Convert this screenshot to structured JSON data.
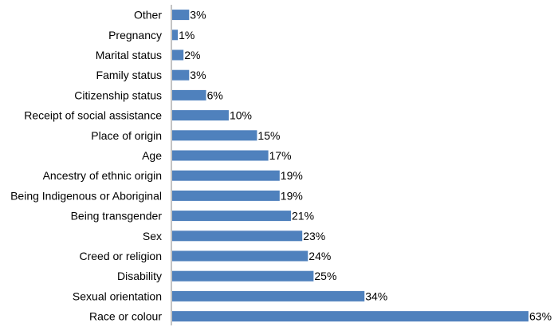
{
  "chart_data": {
    "type": "bar",
    "orientation": "horizontal",
    "categories": [
      "Other",
      "Pregnancy",
      "Marital status",
      "Family status",
      "Citizenship status",
      "Receipt of social assistance",
      "Place of origin",
      "Age",
      "Ancestry of ethnic origin",
      "Being Indigenous or Aboriginal",
      "Being transgender",
      "Sex",
      "Creed or religion",
      "Disability",
      "Sexual orientation",
      "Race or colour"
    ],
    "values": [
      3,
      1,
      2,
      3,
      6,
      10,
      15,
      17,
      19,
      19,
      21,
      23,
      24,
      25,
      34,
      63
    ],
    "data_labels": [
      "3%",
      "1%",
      "2%",
      "3%",
      "6%",
      "10%",
      "15%",
      "17%",
      "19%",
      "19%",
      "21%",
      "23%",
      "24%",
      "25%",
      "34%",
      "63%"
    ],
    "xlim": [
      0,
      63
    ],
    "grid": false,
    "legend": "none",
    "bar_color": "#4F81BD"
  }
}
